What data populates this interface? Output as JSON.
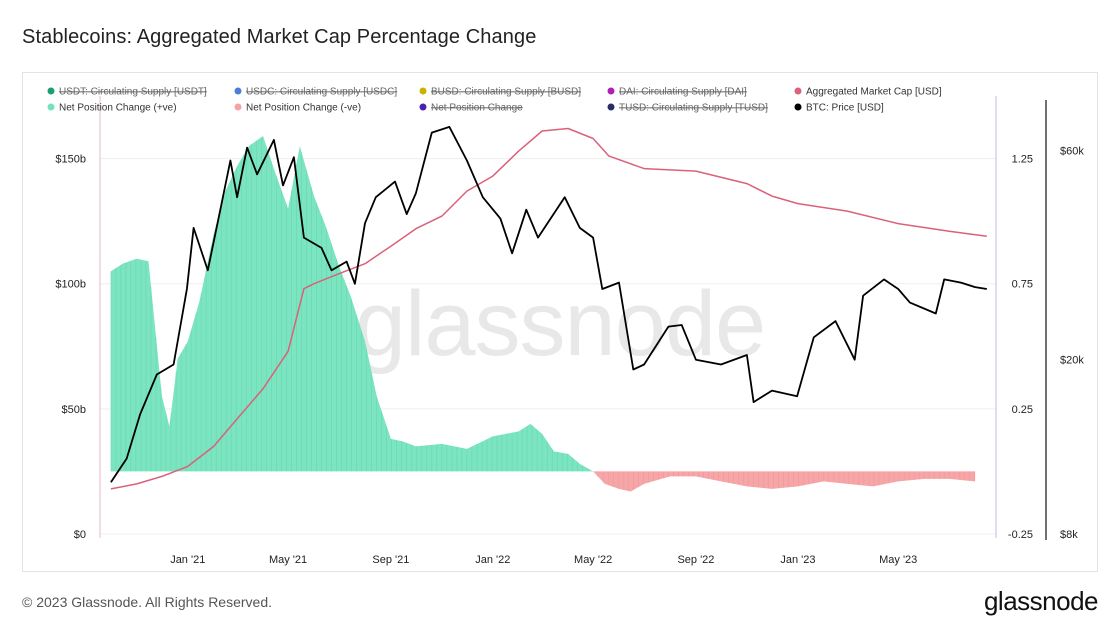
{
  "page": {
    "title": "Stablecoins: Aggregated Market Cap Percentage Change",
    "footer": "© 2023 Glassnode. All Rights Reserved.",
    "brand": "glassnode",
    "watermark": "glassnode"
  },
  "colors": {
    "usdt": "#1a9e72",
    "usdc": "#4a7fd6",
    "busd": "#c9b200",
    "dai": "#b01fb8",
    "aggregated": "#d9627a",
    "positive": "#74e3bd",
    "negative": "#f7a1a3",
    "net_position": "#4b1fb3",
    "tusd": "#2b2b6b",
    "btc": "#000000"
  },
  "chart_data": {
    "type": "area",
    "title": "Stablecoins: Aggregated Market Cap Percentage Change",
    "x_ticks": [
      "Jan '21",
      "May '21",
      "Sep '21",
      "Jan '22",
      "May '22",
      "Sep '22",
      "Jan '23",
      "May '23"
    ],
    "y_left_ticks": [
      "$0",
      "$50b",
      "$100b",
      "$150b"
    ],
    "y_left_range": [
      0,
      175
    ],
    "y_mid_ticks": [
      "-0.25",
      "0.25",
      "0.75",
      "1.25"
    ],
    "y_mid_range": [
      -0.25,
      1.5
    ],
    "y_right_ticks": [
      "$8k",
      "$20k",
      "$60k"
    ],
    "y_right_scale": "log",
    "y_right_range": [
      8000,
      80000
    ],
    "legend": [
      {
        "label": "USDT: Circulating Supply [USDT]",
        "color": "#1a9e72",
        "active": false
      },
      {
        "label": "USDC: Circulating Supply [USDC]",
        "color": "#4a7fd6",
        "active": false
      },
      {
        "label": "BUSD: Circulating Supply [BUSD]",
        "color": "#c9b200",
        "active": false
      },
      {
        "label": "DAI: Circulating Supply [DAI]",
        "color": "#b01fb8",
        "active": false
      },
      {
        "label": "Aggregated Market Cap [USD]",
        "color": "#d9627a",
        "active": true
      },
      {
        "label": "Net Position Change (+ve)",
        "color": "#74e3bd",
        "active": true
      },
      {
        "label": "Net Position Change (-ve)",
        "color": "#f7a1a3",
        "active": true
      },
      {
        "label": "Net Position Change",
        "color": "#4b1fb3",
        "active": false
      },
      {
        "label": "TUSD: Circulating Supply [TUSD]",
        "color": "#2b2b6b",
        "active": false
      },
      {
        "label": "BTC: Price [USD]",
        "color": "#000000",
        "active": true
      }
    ],
    "series": [
      {
        "name": "Net Position Change (+ve)",
        "axis": "mid",
        "points": [
          [
            "2020-10-01",
            0.8
          ],
          [
            "2020-10-15",
            0.83
          ],
          [
            "2020-11-01",
            0.85
          ],
          [
            "2020-11-15",
            0.84
          ],
          [
            "2020-12-01",
            0.3
          ],
          [
            "2020-12-10",
            0.18
          ],
          [
            "2020-12-20",
            0.45
          ],
          [
            "2021-01-01",
            0.52
          ],
          [
            "2021-01-15",
            0.68
          ],
          [
            "2021-02-01",
            0.95
          ],
          [
            "2021-02-15",
            1.12
          ],
          [
            "2021-03-01",
            1.22
          ],
          [
            "2021-03-15",
            1.3
          ],
          [
            "2021-04-01",
            1.34
          ],
          [
            "2021-04-15",
            1.2
          ],
          [
            "2021-05-01",
            1.05
          ],
          [
            "2021-05-15",
            1.3
          ],
          [
            "2021-06-01",
            1.1
          ],
          [
            "2021-06-15",
            0.98
          ],
          [
            "2021-07-01",
            0.82
          ],
          [
            "2021-07-15",
            0.7
          ],
          [
            "2021-08-01",
            0.52
          ],
          [
            "2021-08-15",
            0.3
          ],
          [
            "2021-09-01",
            0.13
          ],
          [
            "2021-09-15",
            0.12
          ],
          [
            "2021-10-01",
            0.1
          ],
          [
            "2021-11-01",
            0.11
          ],
          [
            "2021-12-01",
            0.09
          ],
          [
            "2022-01-01",
            0.14
          ],
          [
            "2022-02-01",
            0.16
          ],
          [
            "2022-02-15",
            0.19
          ],
          [
            "2022-03-01",
            0.15
          ],
          [
            "2022-03-15",
            0.08
          ],
          [
            "2022-04-01",
            0.07
          ],
          [
            "2022-04-15",
            0.03
          ],
          [
            "2022-05-01",
            0.0
          ]
        ]
      },
      {
        "name": "Net Position Change (-ve)",
        "axis": "mid",
        "points": [
          [
            "2022-05-01",
            0.0
          ],
          [
            "2022-05-15",
            -0.05
          ],
          [
            "2022-06-01",
            -0.07
          ],
          [
            "2022-06-15",
            -0.08
          ],
          [
            "2022-07-01",
            -0.05
          ],
          [
            "2022-08-01",
            -0.02
          ],
          [
            "2022-09-01",
            -0.02
          ],
          [
            "2022-10-01",
            -0.04
          ],
          [
            "2022-11-01",
            -0.06
          ],
          [
            "2022-12-01",
            -0.07
          ],
          [
            "2023-01-01",
            -0.06
          ],
          [
            "2023-02-01",
            -0.04
          ],
          [
            "2023-03-01",
            -0.05
          ],
          [
            "2023-04-01",
            -0.06
          ],
          [
            "2023-05-01",
            -0.04
          ],
          [
            "2023-06-01",
            -0.03
          ],
          [
            "2023-07-01",
            -0.03
          ],
          [
            "2023-08-01",
            -0.04
          ]
        ]
      },
      {
        "name": "Aggregated Market Cap [USD]",
        "axis": "left",
        "points": [
          [
            "2020-10-01",
            18
          ],
          [
            "2020-11-01",
            20
          ],
          [
            "2020-12-01",
            23
          ],
          [
            "2021-01-01",
            27
          ],
          [
            "2021-02-01",
            35
          ],
          [
            "2021-03-01",
            46
          ],
          [
            "2021-04-01",
            58
          ],
          [
            "2021-05-01",
            73
          ],
          [
            "2021-05-20",
            98
          ],
          [
            "2021-06-01",
            100
          ],
          [
            "2021-07-01",
            104
          ],
          [
            "2021-08-01",
            108
          ],
          [
            "2021-09-01",
            115
          ],
          [
            "2021-10-01",
            122
          ],
          [
            "2021-11-01",
            127
          ],
          [
            "2021-12-01",
            137
          ],
          [
            "2022-01-01",
            143
          ],
          [
            "2022-02-01",
            153
          ],
          [
            "2022-03-01",
            161
          ],
          [
            "2022-04-01",
            162
          ],
          [
            "2022-05-01",
            158
          ],
          [
            "2022-05-20",
            151
          ],
          [
            "2022-07-01",
            146
          ],
          [
            "2022-09-01",
            145
          ],
          [
            "2022-11-01",
            140
          ],
          [
            "2022-12-01",
            135
          ],
          [
            "2023-01-01",
            132
          ],
          [
            "2023-03-01",
            129
          ],
          [
            "2023-05-01",
            124
          ],
          [
            "2023-07-01",
            121
          ],
          [
            "2023-08-15",
            119
          ]
        ]
      },
      {
        "name": "BTC: Price [USD]",
        "axis": "right",
        "points": [
          [
            "2020-10-01",
            10500
          ],
          [
            "2020-10-20",
            11900
          ],
          [
            "2020-11-05",
            15000
          ],
          [
            "2020-11-25",
            18500
          ],
          [
            "2020-12-15",
            19500
          ],
          [
            "2020-12-31",
            29000
          ],
          [
            "2021-01-08",
            40000
          ],
          [
            "2021-01-25",
            32000
          ],
          [
            "2021-02-10",
            45000
          ],
          [
            "2021-02-21",
            57000
          ],
          [
            "2021-03-01",
            47000
          ],
          [
            "2021-03-13",
            61000
          ],
          [
            "2021-03-25",
            53000
          ],
          [
            "2021-04-14",
            63500
          ],
          [
            "2021-04-25",
            50000
          ],
          [
            "2021-05-08",
            58000
          ],
          [
            "2021-05-20",
            38000
          ],
          [
            "2021-06-10",
            36000
          ],
          [
            "2021-06-22",
            32000
          ],
          [
            "2021-07-10",
            33500
          ],
          [
            "2021-07-20",
            29800
          ],
          [
            "2021-08-01",
            41000
          ],
          [
            "2021-08-14",
            47000
          ],
          [
            "2021-09-06",
            51000
          ],
          [
            "2021-09-20",
            43000
          ],
          [
            "2021-10-01",
            48000
          ],
          [
            "2021-10-20",
            66000
          ],
          [
            "2021-11-10",
            68000
          ],
          [
            "2021-12-01",
            57000
          ],
          [
            "2021-12-20",
            47000
          ],
          [
            "2022-01-10",
            42000
          ],
          [
            "2022-01-24",
            35000
          ],
          [
            "2022-02-10",
            44000
          ],
          [
            "2022-02-24",
            38000
          ],
          [
            "2022-03-28",
            47000
          ],
          [
            "2022-04-15",
            40000
          ],
          [
            "2022-05-01",
            38000
          ],
          [
            "2022-05-12",
            29000
          ],
          [
            "2022-06-01",
            30000
          ],
          [
            "2022-06-18",
            19000
          ],
          [
            "2022-07-01",
            19500
          ],
          [
            "2022-07-30",
            23800
          ],
          [
            "2022-08-15",
            24000
          ],
          [
            "2022-09-01",
            20000
          ],
          [
            "2022-10-01",
            19500
          ],
          [
            "2022-11-01",
            20500
          ],
          [
            "2022-11-09",
            16000
          ],
          [
            "2022-12-01",
            17000
          ],
          [
            "2022-12-31",
            16500
          ],
          [
            "2023-01-20",
            22500
          ],
          [
            "2023-02-15",
            24500
          ],
          [
            "2023-03-10",
            20000
          ],
          [
            "2023-03-20",
            28000
          ],
          [
            "2023-04-14",
            30500
          ],
          [
            "2023-05-01",
            29000
          ],
          [
            "2023-05-15",
            27000
          ],
          [
            "2023-06-15",
            25500
          ],
          [
            "2023-06-25",
            30500
          ],
          [
            "2023-07-15",
            30000
          ],
          [
            "2023-08-01",
            29300
          ],
          [
            "2023-08-15",
            29000
          ]
        ]
      }
    ],
    "grid": true,
    "legend_position": "top"
  }
}
